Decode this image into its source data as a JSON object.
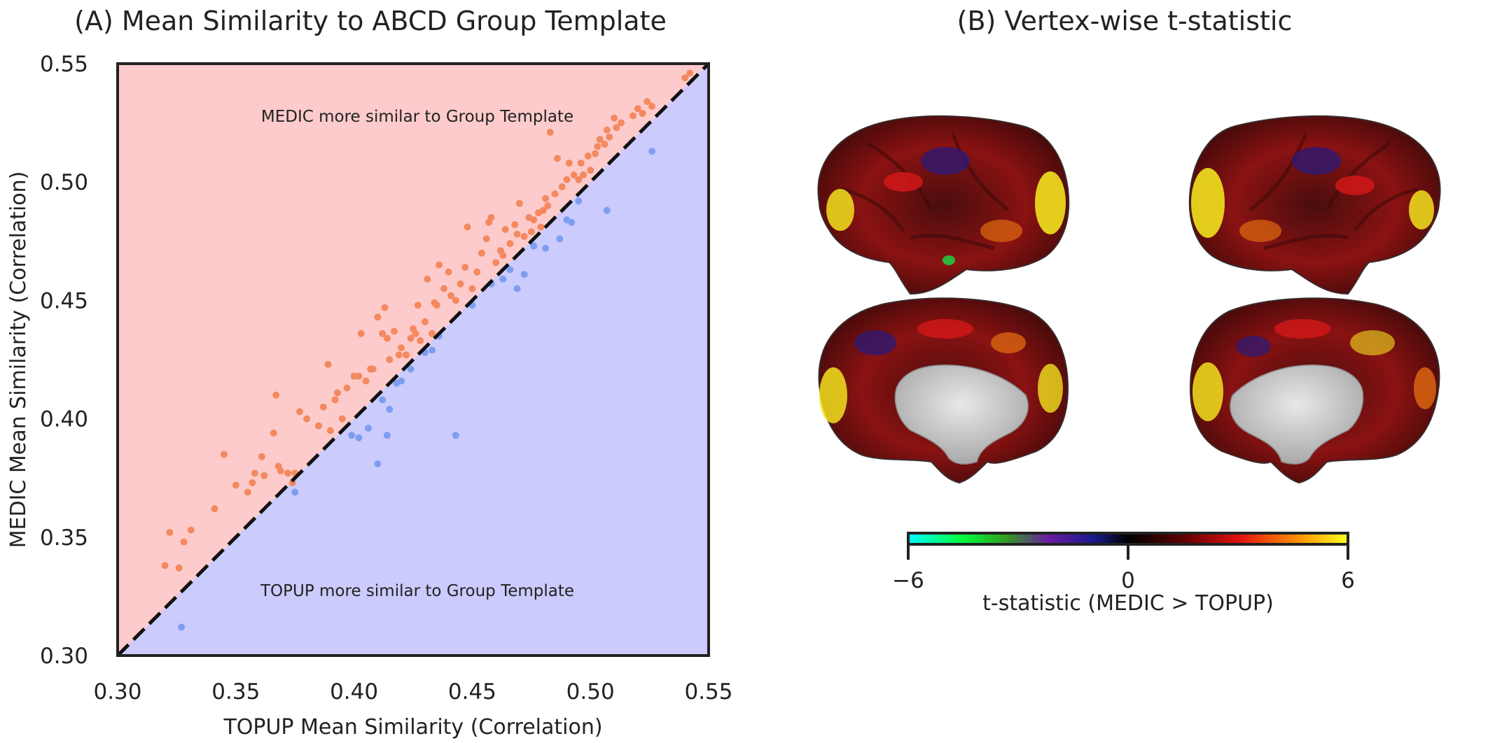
{
  "panel_a": {
    "title": "(A) Mean Similarity to ABCD Group Template",
    "annotation_upper": "MEDIC more similar to Group Template",
    "annotation_lower": "TOPUP more similar to Group Template",
    "xlabel": "TOPUP Mean Similarity (Correlation)",
    "ylabel": "MEDIC Mean Similarity (Correlation)",
    "xticks": [
      "0.30",
      "0.35",
      "0.40",
      "0.45",
      "0.50",
      "0.55"
    ],
    "yticks": [
      "0.30",
      "0.35",
      "0.40",
      "0.45",
      "0.50",
      "0.55"
    ]
  },
  "panel_b": {
    "title": "(B) Vertex-wise t-statistic",
    "colorbar": {
      "label": "t-statistic (MEDIC > TOPUP)",
      "ticks": [
        "−6",
        "0",
        "6"
      ],
      "range": [
        -6,
        6
      ],
      "colormap": "cyan-green-purple-blue-black-red-orange-yellow"
    },
    "views": [
      "left-lateral",
      "right-lateral",
      "left-medial",
      "right-medial"
    ]
  },
  "colors": {
    "upper_region": "#fdcbcb",
    "lower_region": "#cbcbfd",
    "medic_points": "#f4895f",
    "topup_points": "#7e9ef0",
    "identity_line": "#111111"
  },
  "chart_data": [
    {
      "type": "scatter",
      "title": "(A) Mean Similarity to ABCD Group Template",
      "xlabel": "TOPUP Mean Similarity (Correlation)",
      "ylabel": "MEDIC Mean Similarity (Correlation)",
      "xlim": [
        0.3,
        0.55
      ],
      "ylim": [
        0.3,
        0.55
      ],
      "grid": false,
      "reference_line": "y = x (dashed)",
      "series": [
        {
          "name": "",
          "color": "#f4895f",
          "points": [
            [
              0.32,
              0.338
            ],
            [
              0.322,
              0.352
            ],
            [
              0.326,
              0.337
            ],
            [
              0.328,
              0.348
            ],
            [
              0.331,
              0.353
            ],
            [
              0.341,
              0.362
            ],
            [
              0.345,
              0.385
            ],
            [
              0.35,
              0.372
            ],
            [
              0.355,
              0.369
            ],
            [
              0.357,
              0.373
            ],
            [
              0.358,
              0.377
            ],
            [
              0.361,
              0.384
            ],
            [
              0.362,
              0.376
            ],
            [
              0.366,
              0.394
            ],
            [
              0.367,
              0.41
            ],
            [
              0.368,
              0.38
            ],
            [
              0.369,
              0.378
            ],
            [
              0.372,
              0.377
            ],
            [
              0.374,
              0.373
            ],
            [
              0.375,
              0.377
            ],
            [
              0.377,
              0.403
            ],
            [
              0.38,
              0.4
            ],
            [
              0.385,
              0.397
            ],
            [
              0.387,
              0.405
            ],
            [
              0.389,
              0.423
            ],
            [
              0.39,
              0.395
            ],
            [
              0.392,
              0.408
            ],
            [
              0.393,
              0.411
            ],
            [
              0.395,
              0.4
            ],
            [
              0.397,
              0.413
            ],
            [
              0.4,
              0.418
            ],
            [
              0.402,
              0.418
            ],
            [
              0.403,
              0.436
            ],
            [
              0.405,
              0.416
            ],
            [
              0.407,
              0.421
            ],
            [
              0.408,
              0.421
            ],
            [
              0.41,
              0.443
            ],
            [
              0.412,
              0.436
            ],
            [
              0.413,
              0.447
            ],
            [
              0.414,
              0.434
            ],
            [
              0.415,
              0.425
            ],
            [
              0.417,
              0.437
            ],
            [
              0.419,
              0.427
            ],
            [
              0.42,
              0.43
            ],
            [
              0.422,
              0.427
            ],
            [
              0.424,
              0.434
            ],
            [
              0.425,
              0.438
            ],
            [
              0.426,
              0.436
            ],
            [
              0.427,
              0.448
            ],
            [
              0.428,
              0.433
            ],
            [
              0.43,
              0.441
            ],
            [
              0.431,
              0.459
            ],
            [
              0.433,
              0.436
            ],
            [
              0.434,
              0.449
            ],
            [
              0.435,
              0.448
            ],
            [
              0.436,
              0.465
            ],
            [
              0.438,
              0.455
            ],
            [
              0.44,
              0.462
            ],
            [
              0.441,
              0.452
            ],
            [
              0.443,
              0.45
            ],
            [
              0.445,
              0.457
            ],
            [
              0.447,
              0.464
            ],
            [
              0.448,
              0.481
            ],
            [
              0.45,
              0.455
            ],
            [
              0.452,
              0.462
            ],
            [
              0.454,
              0.47
            ],
            [
              0.456,
              0.476
            ],
            [
              0.457,
              0.483
            ],
            [
              0.458,
              0.485
            ],
            [
              0.46,
              0.466
            ],
            [
              0.462,
              0.471
            ],
            [
              0.463,
              0.469
            ],
            [
              0.464,
              0.48
            ],
            [
              0.466,
              0.474
            ],
            [
              0.468,
              0.482
            ],
            [
              0.469,
              0.478
            ],
            [
              0.47,
              0.491
            ],
            [
              0.472,
              0.477
            ],
            [
              0.474,
              0.485
            ],
            [
              0.475,
              0.479
            ],
            [
              0.476,
              0.484
            ],
            [
              0.478,
              0.487
            ],
            [
              0.479,
              0.481
            ],
            [
              0.48,
              0.488
            ],
            [
              0.481,
              0.493
            ],
            [
              0.482,
              0.49
            ],
            [
              0.483,
              0.521
            ],
            [
              0.485,
              0.495
            ],
            [
              0.486,
              0.51
            ],
            [
              0.488,
              0.498
            ],
            [
              0.49,
              0.501
            ],
            [
              0.491,
              0.508
            ],
            [
              0.493,
              0.503
            ],
            [
              0.495,
              0.501
            ],
            [
              0.496,
              0.508
            ],
            [
              0.497,
              0.503
            ],
            [
              0.499,
              0.511
            ],
            [
              0.5,
              0.505
            ],
            [
              0.502,
              0.512
            ],
            [
              0.503,
              0.515
            ],
            [
              0.504,
              0.518
            ],
            [
              0.506,
              0.516
            ],
            [
              0.507,
              0.522
            ],
            [
              0.508,
              0.519
            ],
            [
              0.51,
              0.527
            ],
            [
              0.511,
              0.523
            ],
            [
              0.513,
              0.525
            ],
            [
              0.518,
              0.528
            ],
            [
              0.52,
              0.531
            ],
            [
              0.522,
              0.529
            ],
            [
              0.524,
              0.534
            ],
            [
              0.526,
              0.532
            ],
            [
              0.54,
              0.544
            ],
            [
              0.542,
              0.546
            ]
          ]
        },
        {
          "name": "",
          "color": "#7e9ef0",
          "points": [
            [
              0.327,
              0.312
            ],
            [
              0.375,
              0.369
            ],
            [
              0.399,
              0.393
            ],
            [
              0.402,
              0.392
            ],
            [
              0.406,
              0.396
            ],
            [
              0.41,
              0.381
            ],
            [
              0.412,
              0.408
            ],
            [
              0.414,
              0.393
            ],
            [
              0.415,
              0.404
            ],
            [
              0.418,
              0.415
            ],
            [
              0.42,
              0.416
            ],
            [
              0.424,
              0.421
            ],
            [
              0.43,
              0.428
            ],
            [
              0.433,
              0.429
            ],
            [
              0.436,
              0.435
            ],
            [
              0.443,
              0.393
            ],
            [
              0.45,
              0.448
            ],
            [
              0.458,
              0.457
            ],
            [
              0.463,
              0.459
            ],
            [
              0.466,
              0.463
            ],
            [
              0.469,
              0.455
            ],
            [
              0.472,
              0.461
            ],
            [
              0.476,
              0.473
            ],
            [
              0.481,
              0.472
            ],
            [
              0.487,
              0.476
            ],
            [
              0.49,
              0.484
            ],
            [
              0.492,
              0.483
            ],
            [
              0.495,
              0.492
            ],
            [
              0.507,
              0.488
            ],
            [
              0.526,
              0.513
            ]
          ]
        }
      ]
    },
    {
      "type": "heatmap",
      "title": "(B) Vertex-wise t-statistic",
      "colorbar_label": "t-statistic (MEDIC > TOPUP)",
      "colorbar_ticks": [
        -6,
        0,
        6
      ],
      "range": [
        -6,
        6
      ]
    }
  ]
}
